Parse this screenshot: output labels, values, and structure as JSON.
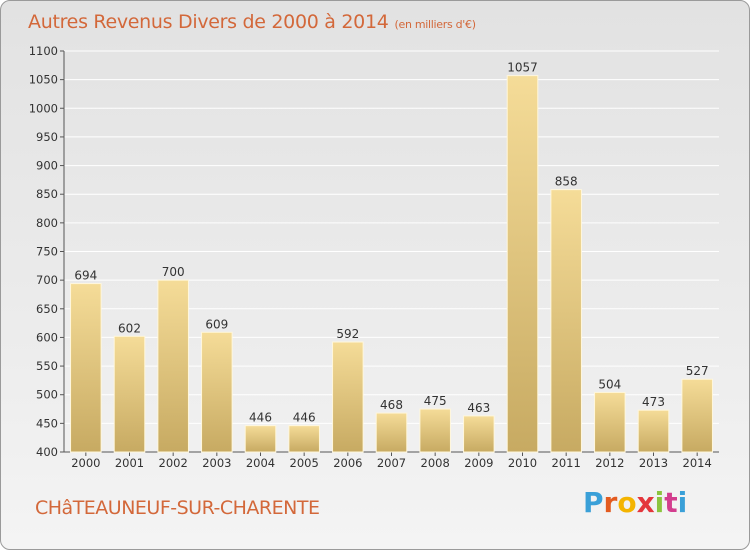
{
  "chart_data": {
    "type": "bar",
    "title": "Autres Revenus Divers de 2000 à 2014",
    "subtitle": "(en milliers d'€)",
    "categories": [
      "2000",
      "2001",
      "2002",
      "2003",
      "2004",
      "2005",
      "2006",
      "2007",
      "2008",
      "2009",
      "2010",
      "2011",
      "2012",
      "2013",
      "2014"
    ],
    "values": [
      694,
      602,
      700,
      609,
      446,
      446,
      592,
      468,
      475,
      463,
      1057,
      858,
      504,
      473,
      527
    ],
    "ylim": [
      400,
      1100
    ],
    "yticks": [
      400,
      450,
      500,
      550,
      600,
      650,
      700,
      750,
      800,
      850,
      900,
      950,
      1000,
      1050,
      1100
    ],
    "grid": true,
    "bar_color": "#e8c97c"
  },
  "footer": {
    "city": "CHâTEAUNEUF-SUR-CHARENTE"
  },
  "logo": {
    "letters": [
      "P",
      "r",
      "o",
      "x",
      "i",
      "t",
      "i"
    ]
  }
}
